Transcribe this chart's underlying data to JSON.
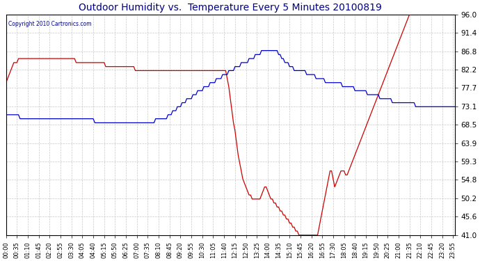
{
  "title": "Outdoor Humidity vs.  Temperature Every 5 Minutes 20100819",
  "copyright_text": "Copyright 2010 Cartronics.com",
  "y_ticks": [
    41.0,
    45.6,
    50.2,
    54.8,
    59.3,
    63.9,
    68.5,
    73.1,
    77.7,
    82.2,
    86.8,
    91.4,
    96.0
  ],
  "y_min": 41.0,
  "y_max": 96.0,
  "bg_color": "#ffffff",
  "grid_color": "#c8c8c8",
  "humidity_color": "#cc0000",
  "temp_color": "#0000cc",
  "title_color": "#000080",
  "figsize": [
    6.9,
    3.75
  ],
  "dpi": 100,
  "humidity_data": [
    79,
    80,
    81,
    82,
    83,
    84,
    84,
    84,
    85,
    85,
    85,
    85,
    85,
    85,
    85,
    85,
    85,
    85,
    85,
    85,
    85,
    85,
    85,
    85,
    85,
    85,
    85,
    85,
    85,
    85,
    85,
    85,
    85,
    85,
    85,
    85,
    85,
    85,
    85,
    85,
    85,
    85,
    85,
    85,
    85,
    84,
    84,
    84,
    84,
    84,
    84,
    84,
    84,
    84,
    84,
    84,
    84,
    84,
    84,
    84,
    84,
    84,
    84,
    84,
    83,
    83,
    83,
    83,
    83,
    83,
    83,
    83,
    83,
    83,
    83,
    83,
    83,
    83,
    83,
    83,
    83,
    83,
    83,
    82,
    82,
    82,
    82,
    82,
    82,
    82,
    82,
    82,
    82,
    82,
    82,
    82,
    82,
    82,
    82,
    82,
    82,
    82,
    82,
    82,
    82,
    82,
    82,
    82,
    82,
    82,
    82,
    82,
    82,
    82,
    82,
    82,
    82,
    82,
    82,
    82,
    82,
    82,
    82,
    82,
    82,
    82,
    82,
    82,
    82,
    82,
    82,
    82,
    82,
    82,
    82,
    82,
    82,
    82,
    82,
    82,
    82,
    82,
    80,
    78,
    75,
    72,
    69,
    67,
    64,
    61,
    59,
    57,
    55,
    54,
    53,
    52,
    51,
    51,
    50,
    50,
    50,
    50,
    50,
    50,
    51,
    52,
    53,
    53,
    52,
    51,
    50,
    50,
    49,
    49,
    48,
    48,
    47,
    47,
    46,
    46,
    45,
    45,
    44,
    44,
    43,
    43,
    42,
    42,
    41,
    41,
    41,
    41,
    41,
    41,
    41,
    41,
    41,
    41,
    41,
    41,
    41,
    43,
    45,
    47,
    49,
    51,
    53,
    55,
    57,
    57,
    55,
    53,
    54,
    55,
    56,
    57,
    57,
    57,
    56,
    56,
    57,
    58,
    59,
    60,
    61,
    62,
    63,
    64,
    65,
    66,
    67,
    68,
    69,
    70,
    71,
    72,
    73,
    74,
    75,
    76,
    77,
    78,
    79,
    80,
    81,
    82,
    83,
    84,
    85,
    86,
    87,
    88,
    89,
    90,
    91,
    92,
    93,
    94,
    95,
    96,
    96,
    96,
    96,
    96,
    96,
    96,
    96,
    96,
    96,
    96,
    96,
    96,
    96,
    96,
    96,
    96,
    96,
    96,
    96,
    96,
    96,
    96,
    96,
    96,
    96,
    96,
    96,
    96,
    96
  ],
  "temp_data": [
    71,
    71,
    71,
    71,
    71,
    71,
    71,
    71,
    71,
    70,
    70,
    70,
    70,
    70,
    70,
    70,
    70,
    70,
    70,
    70,
    70,
    70,
    70,
    70,
    70,
    70,
    70,
    70,
    70,
    70,
    70,
    70,
    70,
    70,
    70,
    70,
    70,
    70,
    70,
    70,
    70,
    70,
    70,
    70,
    70,
    70,
    70,
    70,
    70,
    70,
    70,
    70,
    70,
    70,
    70,
    70,
    70,
    69,
    69,
    69,
    69,
    69,
    69,
    69,
    69,
    69,
    69,
    69,
    69,
    69,
    69,
    69,
    69,
    69,
    69,
    69,
    69,
    69,
    69,
    69,
    69,
    69,
    69,
    69,
    69,
    69,
    69,
    69,
    69,
    69,
    69,
    69,
    69,
    69,
    69,
    69,
    70,
    70,
    70,
    70,
    70,
    70,
    70,
    70,
    71,
    71,
    71,
    72,
    72,
    72,
    73,
    73,
    73,
    74,
    74,
    74,
    75,
    75,
    75,
    75,
    76,
    76,
    76,
    77,
    77,
    77,
    77,
    78,
    78,
    78,
    78,
    79,
    79,
    79,
    79,
    80,
    80,
    80,
    80,
    81,
    81,
    81,
    81,
    82,
    82,
    82,
    82,
    83,
    83,
    83,
    83,
    84,
    84,
    84,
    84,
    84,
    85,
    85,
    85,
    85,
    86,
    86,
    86,
    86,
    87,
    87,
    87,
    87,
    87,
    87,
    87,
    87,
    87,
    87,
    87,
    86,
    86,
    85,
    85,
    84,
    84,
    84,
    83,
    83,
    83,
    82,
    82,
    82,
    82,
    82,
    82,
    82,
    82,
    81,
    81,
    81,
    81,
    81,
    81,
    80,
    80,
    80,
    80,
    80,
    80,
    79,
    79,
    79,
    79,
    79,
    79,
    79,
    79,
    79,
    79,
    79,
    78,
    78,
    78,
    78,
    78,
    78,
    78,
    78,
    77,
    77,
    77,
    77,
    77,
    77,
    77,
    77,
    76,
    76,
    76,
    76,
    76,
    76,
    76,
    76,
    75,
    75,
    75,
    75,
    75,
    75,
    75,
    75,
    74,
    74,
    74,
    74,
    74,
    74,
    74,
    74,
    74,
    74,
    74,
    74,
    74,
    74,
    74,
    73,
    73,
    73,
    73,
    73,
    73,
    73,
    73,
    73,
    73,
    73,
    73,
    73,
    73,
    73,
    73,
    73,
    73,
    73,
    73,
    73,
    73,
    73,
    73,
    73,
    73
  ]
}
